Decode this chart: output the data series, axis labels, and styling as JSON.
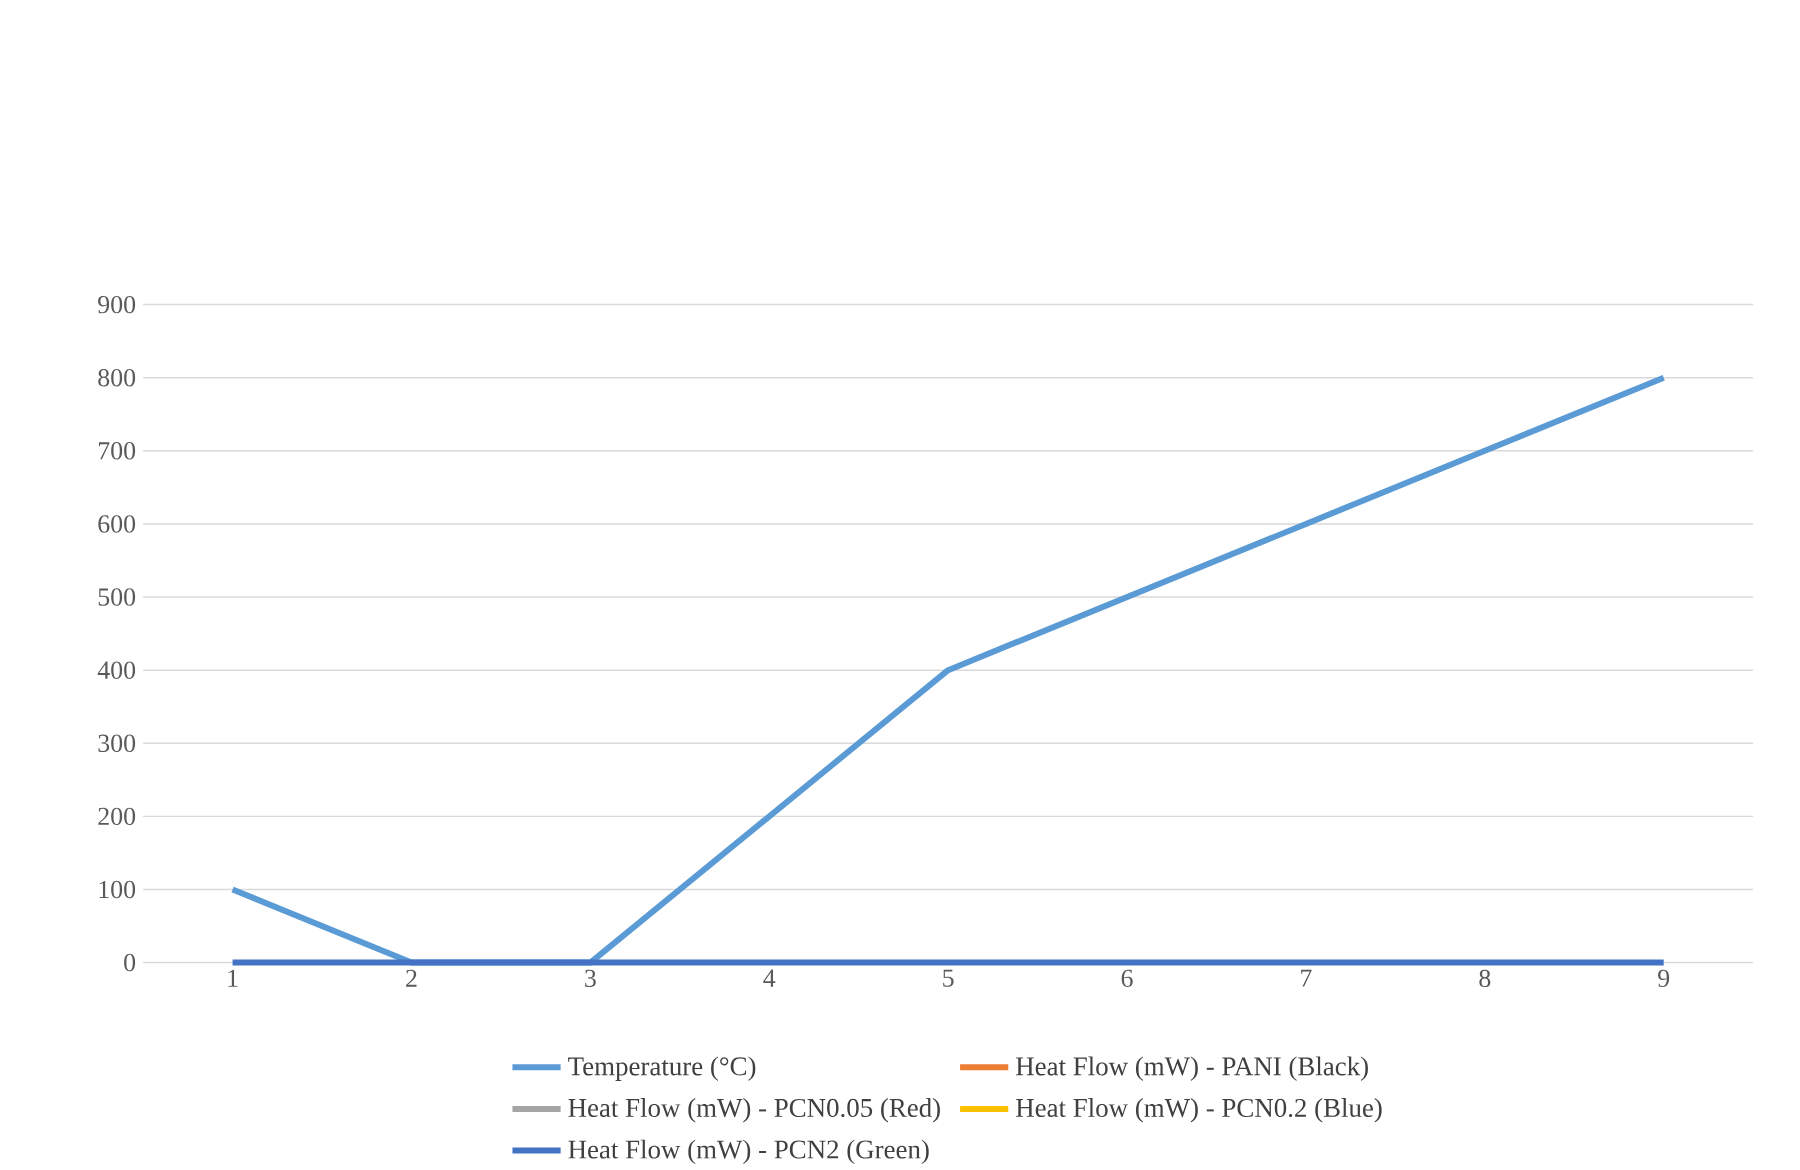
{
  "chart_data": {
    "type": "line",
    "categories": [
      "1",
      "2",
      "3",
      "4",
      "5",
      "6",
      "7",
      "8",
      "9"
    ],
    "series": [
      {
        "name": "Temperature (°C)",
        "color": "#5b9bd5",
        "values": [
          100,
          0,
          0,
          200,
          400,
          500,
          600,
          700,
          800
        ]
      },
      {
        "name": "Heat Flow (mW) - PANI (Black)",
        "color": "#ed7d31",
        "values": [
          null,
          null,
          null,
          null,
          null,
          null,
          null,
          null,
          null
        ]
      },
      {
        "name": "Heat Flow (mW) - PCN0.05 (Red)",
        "color": "#a5a5a5",
        "values": [
          null,
          null,
          null,
          null,
          null,
          null,
          null,
          null,
          null
        ]
      },
      {
        "name": "Heat Flow (mW) - PCN0.2 (Blue)",
        "color": "#ffc000",
        "values": [
          null,
          null,
          null,
          null,
          null,
          null,
          null,
          null,
          null
        ]
      },
      {
        "name": "Heat Flow (mW) - PCN2 (Green)",
        "color": "#4472c4",
        "values": [
          0,
          0,
          0,
          0,
          0,
          0,
          0,
          0,
          0
        ]
      }
    ],
    "ylim": [
      0,
      900
    ],
    "yticks": [
      0,
      100,
      200,
      300,
      400,
      500,
      600,
      700,
      800,
      900
    ],
    "grid": "y",
    "legend": "bottom",
    "marker": "none",
    "line_style": "solid"
  }
}
